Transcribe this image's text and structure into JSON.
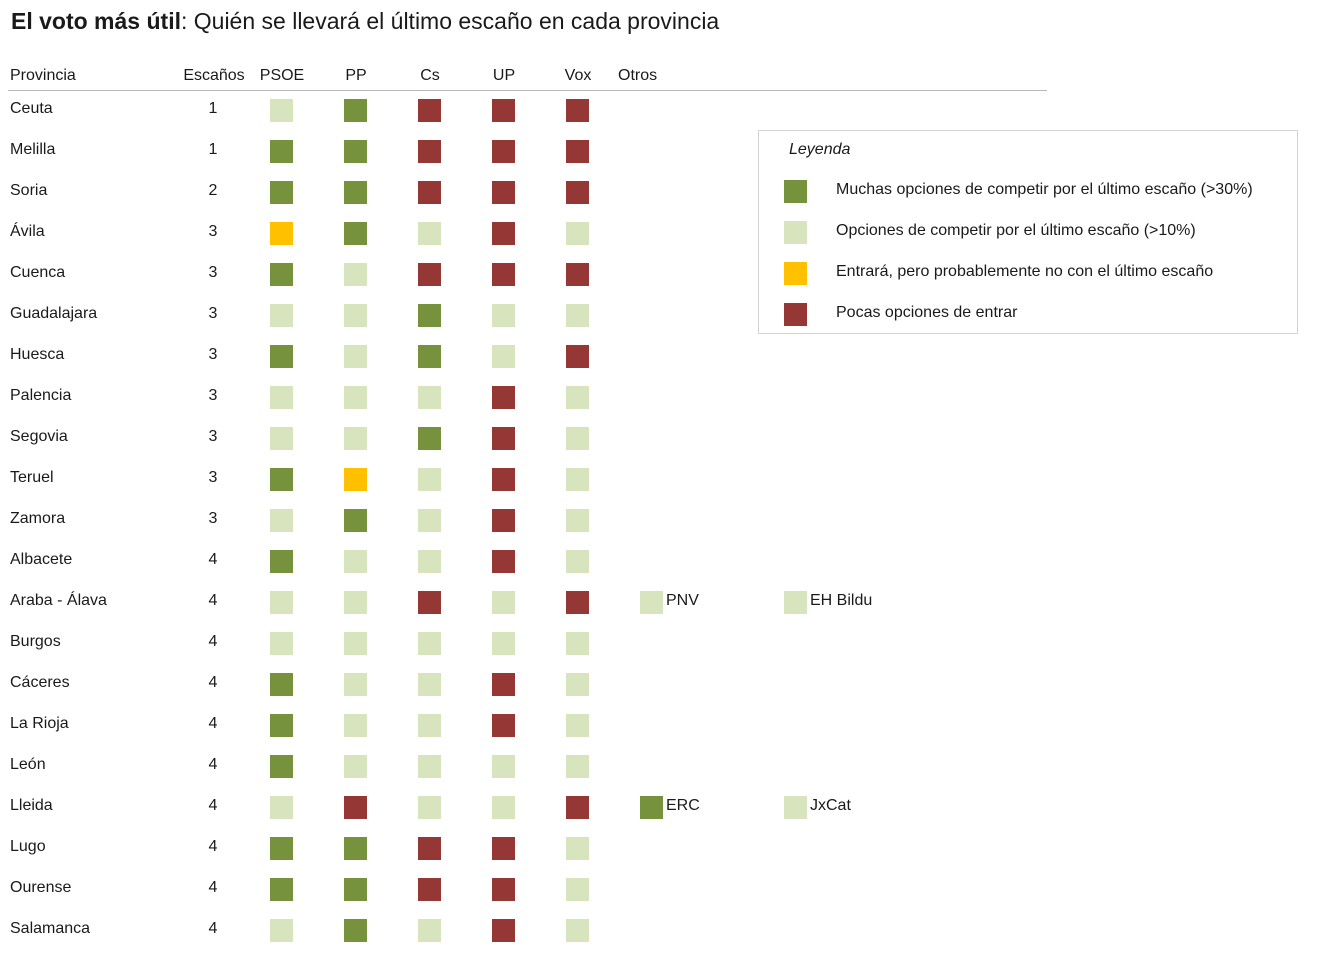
{
  "title": {
    "bold": "El voto más útil",
    "rest": ": Quién se llevará el último escaño en cada provincia"
  },
  "columns": {
    "provincia": "Provincia",
    "escanos": "Escaños",
    "psoe": "PSOE",
    "pp": "PP",
    "cs": "Cs",
    "up": "UP",
    "vox": "Vox",
    "otros": "Otros"
  },
  "colors": {
    "G": "#76923c",
    "L": "#d7e4bd",
    "Y": "#ffc000",
    "R": "#953735"
  },
  "legend": {
    "title": "Leyenda",
    "items": [
      {
        "code": "G",
        "text": "Muchas opciones de competir por el último escaño (>30%)"
      },
      {
        "code": "L",
        "text": "Opciones de competir por el último escaño (>10%)"
      },
      {
        "code": "Y",
        "text": "Entrará, pero probablemente no con el último escaño"
      },
      {
        "code": "R",
        "text": "Pocas opciones de entrar"
      }
    ]
  },
  "rows": [
    {
      "provincia": "Ceuta",
      "escanos": "1",
      "cells": [
        "L",
        "G",
        "R",
        "R",
        "R"
      ],
      "otros": []
    },
    {
      "provincia": "Melilla",
      "escanos": "1",
      "cells": [
        "G",
        "G",
        "R",
        "R",
        "R"
      ],
      "otros": []
    },
    {
      "provincia": "Soria",
      "escanos": "2",
      "cells": [
        "G",
        "G",
        "R",
        "R",
        "R"
      ],
      "otros": []
    },
    {
      "provincia": "Ávila",
      "escanos": "3",
      "cells": [
        "Y",
        "G",
        "L",
        "R",
        "L"
      ],
      "otros": []
    },
    {
      "provincia": "Cuenca",
      "escanos": "3",
      "cells": [
        "G",
        "L",
        "R",
        "R",
        "R"
      ],
      "otros": []
    },
    {
      "provincia": "Guadalajara",
      "escanos": "3",
      "cells": [
        "L",
        "L",
        "G",
        "L",
        "L"
      ],
      "otros": []
    },
    {
      "provincia": "Huesca",
      "escanos": "3",
      "cells": [
        "G",
        "L",
        "G",
        "L",
        "R"
      ],
      "otros": []
    },
    {
      "provincia": "Palencia",
      "escanos": "3",
      "cells": [
        "L",
        "L",
        "L",
        "R",
        "L"
      ],
      "otros": []
    },
    {
      "provincia": "Segovia",
      "escanos": "3",
      "cells": [
        "L",
        "L",
        "G",
        "R",
        "L"
      ],
      "otros": []
    },
    {
      "provincia": "Teruel",
      "escanos": "3",
      "cells": [
        "G",
        "Y",
        "L",
        "R",
        "L"
      ],
      "otros": []
    },
    {
      "provincia": "Zamora",
      "escanos": "3",
      "cells": [
        "L",
        "G",
        "L",
        "R",
        "L"
      ],
      "otros": []
    },
    {
      "provincia": "Albacete",
      "escanos": "4",
      "cells": [
        "G",
        "L",
        "L",
        "R",
        "L"
      ],
      "otros": []
    },
    {
      "provincia": "Araba - Álava",
      "escanos": "4",
      "cells": [
        "L",
        "L",
        "R",
        "L",
        "R"
      ],
      "otros": [
        {
          "name": "PNV",
          "code": "L"
        },
        {
          "name": "EH Bildu",
          "code": "L"
        }
      ]
    },
    {
      "provincia": "Burgos",
      "escanos": "4",
      "cells": [
        "L",
        "L",
        "L",
        "L",
        "L"
      ],
      "otros": []
    },
    {
      "provincia": "Cáceres",
      "escanos": "4",
      "cells": [
        "G",
        "L",
        "L",
        "R",
        "L"
      ],
      "otros": []
    },
    {
      "provincia": "La Rioja",
      "escanos": "4",
      "cells": [
        "G",
        "L",
        "L",
        "R",
        "L"
      ],
      "otros": []
    },
    {
      "provincia": "León",
      "escanos": "4",
      "cells": [
        "G",
        "L",
        "L",
        "L",
        "L"
      ],
      "otros": []
    },
    {
      "provincia": "Lleida",
      "escanos": "4",
      "cells": [
        "L",
        "R",
        "L",
        "L",
        "R"
      ],
      "otros": [
        {
          "name": "ERC",
          "code": "G"
        },
        {
          "name": "JxCat",
          "code": "L"
        }
      ]
    },
    {
      "provincia": "Lugo",
      "escanos": "4",
      "cells": [
        "G",
        "G",
        "R",
        "R",
        "L"
      ],
      "otros": []
    },
    {
      "provincia": "Ourense",
      "escanos": "4",
      "cells": [
        "G",
        "G",
        "R",
        "R",
        "L"
      ],
      "otros": []
    },
    {
      "provincia": "Salamanca",
      "escanos": "4",
      "cells": [
        "L",
        "G",
        "L",
        "R",
        "L"
      ],
      "otros": []
    }
  ]
}
